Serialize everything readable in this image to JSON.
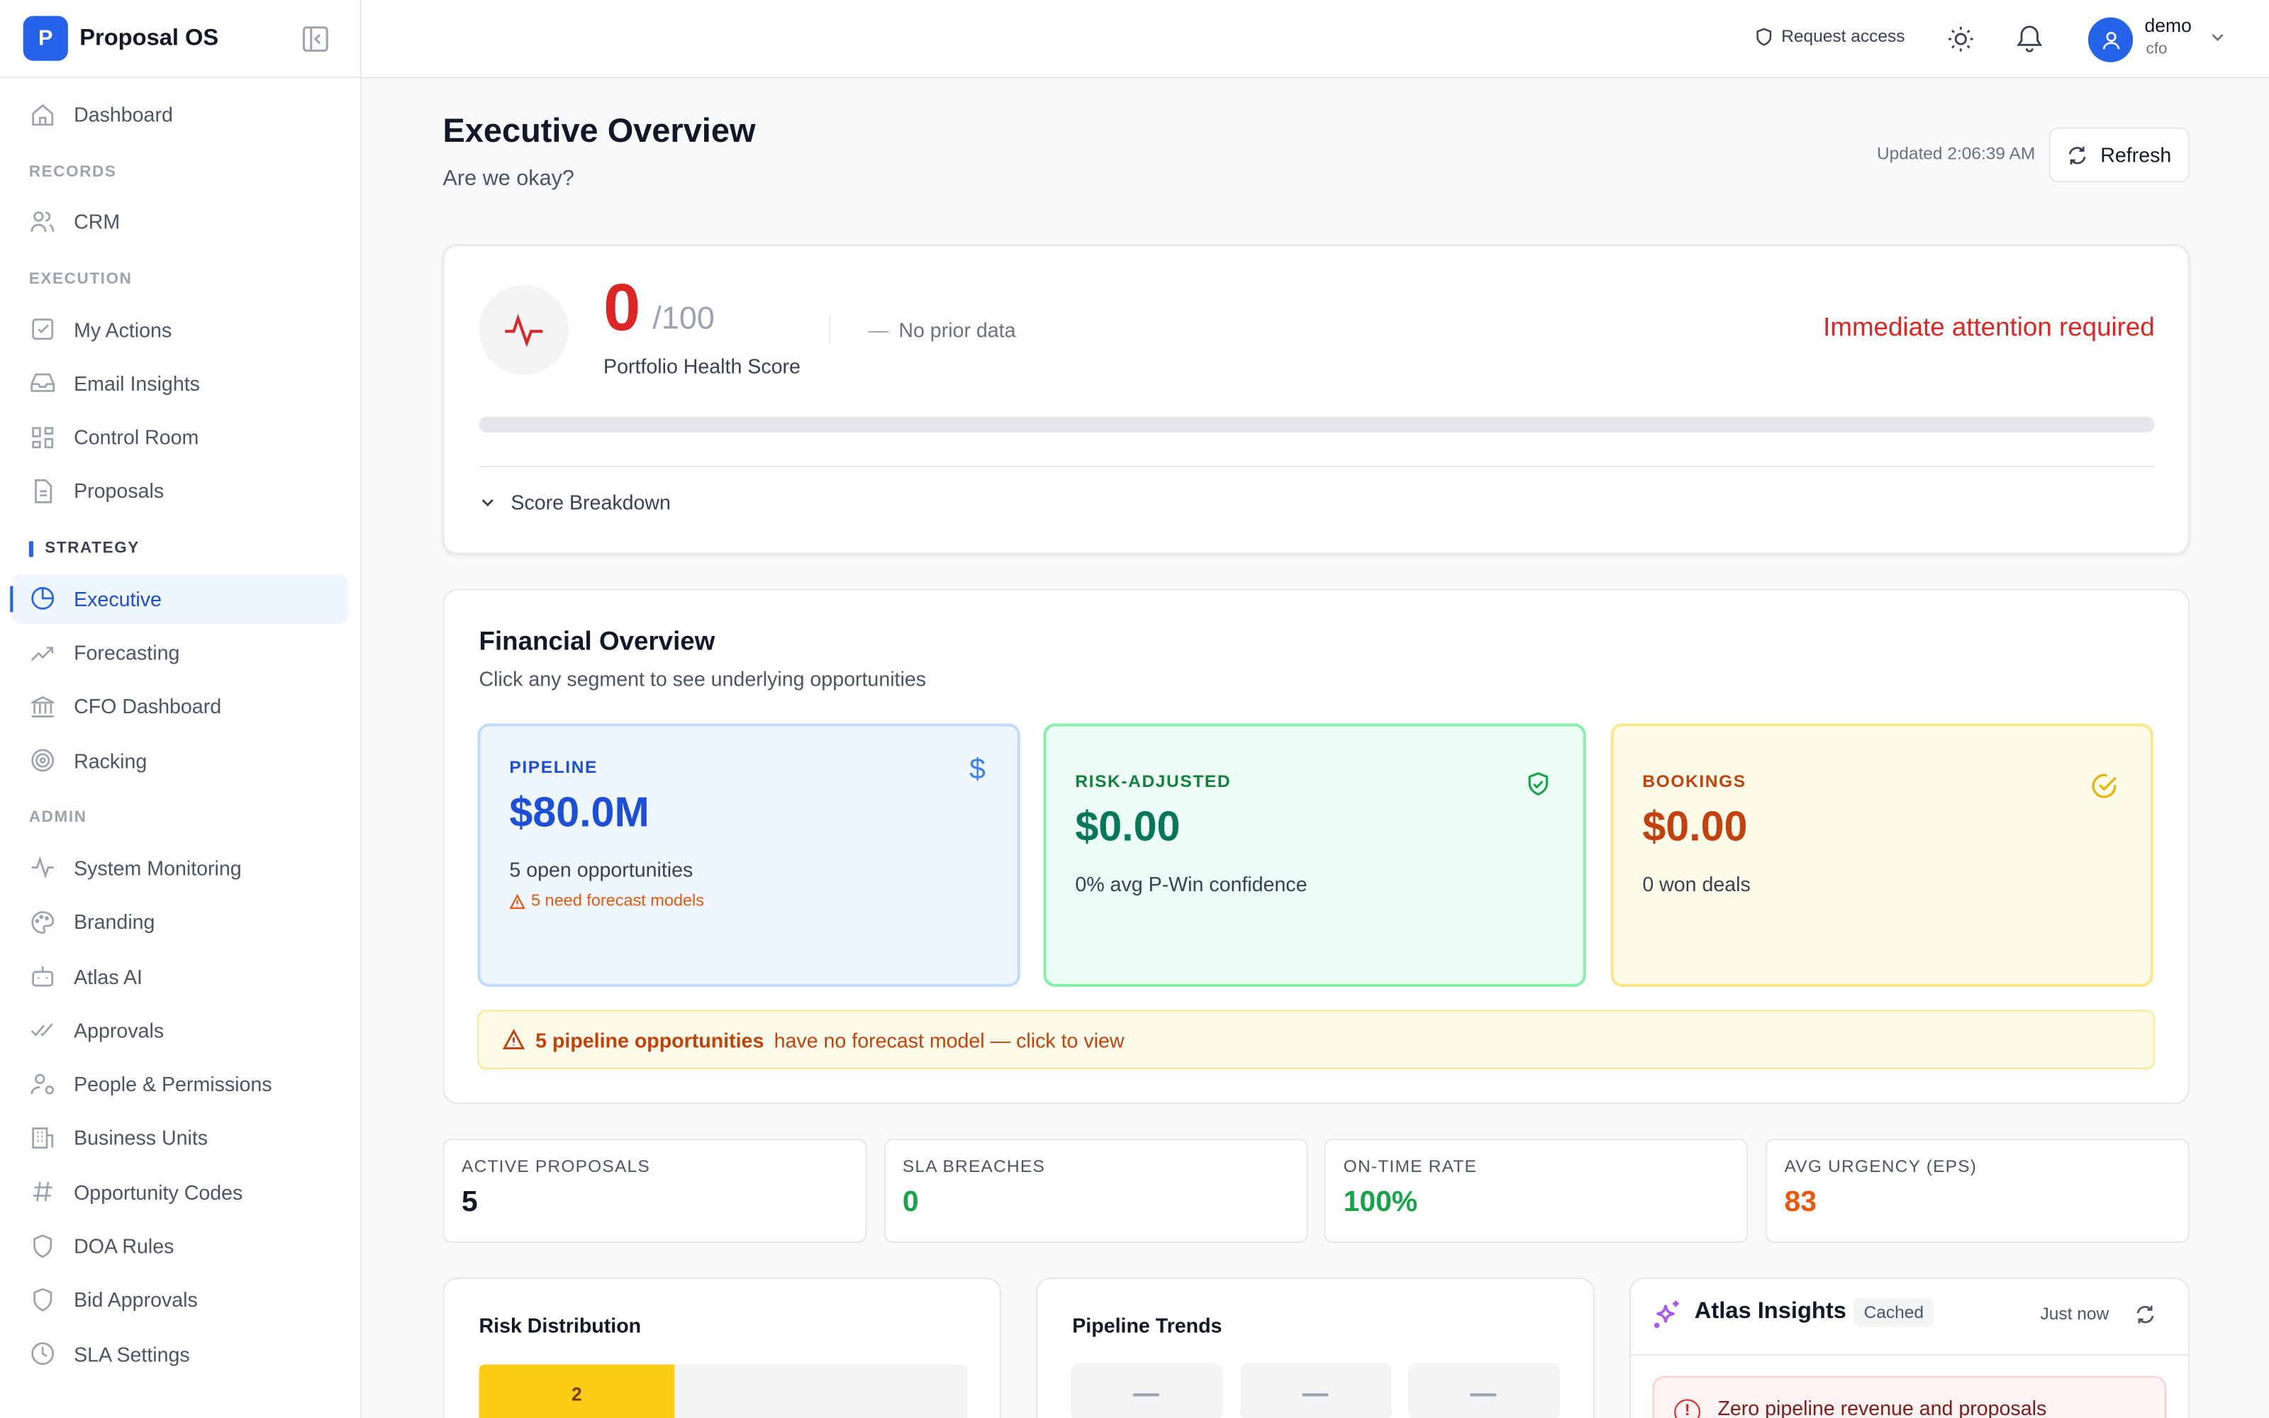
{
  "app": {
    "logo_letter": "P",
    "name": "Proposal OS"
  },
  "sidebar": {
    "dashboard": "Dashboard",
    "sections": [
      {
        "label": "RECORDS",
        "items": [
          "CRM"
        ]
      },
      {
        "label": "EXECUTION",
        "items": [
          "My Actions",
          "Email Insights",
          "Control Room",
          "Proposals"
        ]
      },
      {
        "label": "STRATEGY",
        "items": [
          "Executive",
          "Forecasting",
          "CFO Dashboard",
          "Racking"
        ]
      },
      {
        "label": "ADMIN",
        "items": [
          "System Monitoring",
          "Branding",
          "Atlas AI",
          "Approvals",
          "People & Permissions",
          "Business Units",
          "Opportunity Codes",
          "DOA Rules",
          "Bid Approvals",
          "SLA Settings"
        ]
      }
    ],
    "active": "Executive"
  },
  "header": {
    "request_access": "Request access",
    "user_name": "demo",
    "user_role": "cfo"
  },
  "page": {
    "title": "Executive Overview",
    "subtitle": "Are we okay?",
    "updated": "Updated 2:06:39 AM",
    "refresh": "Refresh"
  },
  "health": {
    "score": "0",
    "max": "/100",
    "label": "Portfolio Health Score",
    "prior_dash": "—",
    "prior": "No prior data",
    "status": "Immediate attention required",
    "progress_percent": 0,
    "breakdown": "Score Breakdown",
    "status_color": "#dc2626"
  },
  "financial": {
    "title": "Financial Overview",
    "subtitle": "Click any segment to see underlying opportunities",
    "pipeline": {
      "label": "PIPELINE",
      "value": "$80.0M",
      "sub": "5 open opportunities",
      "warn": "5 need forecast models"
    },
    "risk": {
      "label": "RISK-ADJUSTED",
      "value": "$0.00",
      "sub": "0% avg P-Win confidence"
    },
    "bookings": {
      "label": "BOOKINGS",
      "value": "$0.00",
      "sub": "0 won deals"
    },
    "alert_bold": "5 pipeline opportunities",
    "alert_rest": "have no forecast model — click to view"
  },
  "kpis": [
    {
      "label": "ACTIVE PROPOSALS",
      "value": "5",
      "color": "#111827"
    },
    {
      "label": "SLA BREACHES",
      "value": "0",
      "color": "#16a34a"
    },
    {
      "label": "ON-TIME RATE",
      "value": "100%",
      "color": "#16a34a"
    },
    {
      "label": "AVG URGENCY (EPS)",
      "value": "83",
      "color": "#ea580c"
    }
  ],
  "risk_distribution": {
    "title": "Risk Distribution",
    "bar_value": "2",
    "bar_fraction": 0.4
  },
  "pipeline_trends": {
    "title": "Pipeline Trends"
  },
  "atlas": {
    "title": "Atlas Insights",
    "badge": "Cached",
    "time": "Just now",
    "insight": "Zero pipeline revenue and proposals"
  }
}
